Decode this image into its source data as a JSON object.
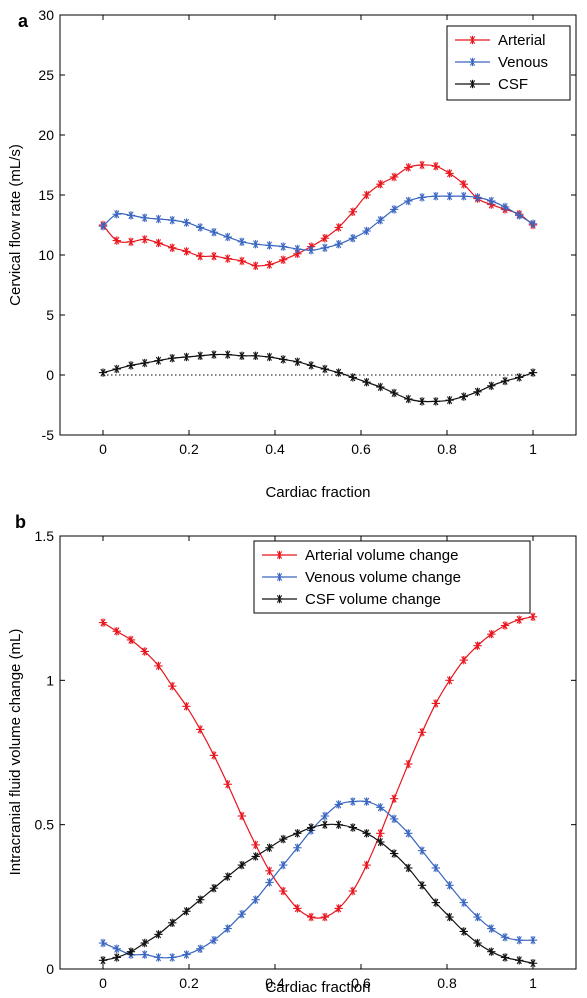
{
  "chart_data": [
    {
      "type": "line",
      "panel": "a",
      "xlabel": "Cardiac fraction",
      "ylabel": "Cervical flow rate (mL/s)",
      "xlim": [
        -0.1,
        1.1
      ],
      "ylim": [
        -5,
        30
      ],
      "xticks": [
        0,
        0.2,
        0.4,
        0.6,
        0.8,
        1
      ],
      "xtick_labels": [
        "0",
        "0.2",
        "0.4",
        "0.6",
        "0.8",
        "1"
      ],
      "yticks": [
        -5,
        0,
        5,
        10,
        15,
        20,
        25,
        30
      ],
      "ytick_labels": [
        "-5",
        "0",
        "5",
        "10",
        "15",
        "20",
        "25",
        "30"
      ],
      "legend_position": "top-right",
      "zero_line": true,
      "series": [
        {
          "name": "Arterial",
          "color": "#e8141c",
          "x": [
            0,
            0.032,
            0.065,
            0.097,
            0.129,
            0.161,
            0.194,
            0.226,
            0.258,
            0.29,
            0.323,
            0.355,
            0.387,
            0.419,
            0.452,
            0.484,
            0.516,
            0.548,
            0.581,
            0.613,
            0.645,
            0.677,
            0.71,
            0.742,
            0.774,
            0.806,
            0.839,
            0.871,
            0.903,
            0.935,
            0.968,
            1
          ],
          "y": [
            12.5,
            11.2,
            11.1,
            11.3,
            11.0,
            10.6,
            10.3,
            9.9,
            9.9,
            9.7,
            9.5,
            9.1,
            9.2,
            9.6,
            10.1,
            10.7,
            11.4,
            12.3,
            13.6,
            15.0,
            15.9,
            16.5,
            17.3,
            17.5,
            17.4,
            16.8,
            15.9,
            14.7,
            14.2,
            13.8,
            13.4,
            12.5
          ]
        },
        {
          "name": "Venous",
          "color": "#3a66c0",
          "x": [
            0,
            0.032,
            0.065,
            0.097,
            0.129,
            0.161,
            0.194,
            0.226,
            0.258,
            0.29,
            0.323,
            0.355,
            0.387,
            0.419,
            0.452,
            0.484,
            0.516,
            0.548,
            0.581,
            0.613,
            0.645,
            0.677,
            0.71,
            0.742,
            0.774,
            0.806,
            0.839,
            0.871,
            0.903,
            0.935,
            0.968,
            1
          ],
          "y": [
            12.4,
            13.4,
            13.3,
            13.1,
            13.0,
            12.9,
            12.7,
            12.3,
            11.9,
            11.5,
            11.1,
            10.9,
            10.8,
            10.7,
            10.5,
            10.4,
            10.6,
            10.9,
            11.4,
            12.0,
            12.9,
            13.8,
            14.5,
            14.8,
            14.9,
            14.9,
            14.9,
            14.8,
            14.5,
            14.0,
            13.3,
            12.6
          ]
        },
        {
          "name": "CSF",
          "color": "#111111",
          "x": [
            0,
            0.032,
            0.065,
            0.097,
            0.129,
            0.161,
            0.194,
            0.226,
            0.258,
            0.29,
            0.323,
            0.355,
            0.387,
            0.419,
            0.452,
            0.484,
            0.516,
            0.548,
            0.581,
            0.613,
            0.645,
            0.677,
            0.71,
            0.742,
            0.774,
            0.806,
            0.839,
            0.871,
            0.903,
            0.935,
            0.968,
            1
          ],
          "y": [
            0.2,
            0.5,
            0.8,
            1.0,
            1.2,
            1.4,
            1.5,
            1.6,
            1.7,
            1.7,
            1.6,
            1.6,
            1.5,
            1.3,
            1.1,
            0.8,
            0.5,
            0.2,
            -0.2,
            -0.6,
            -1.0,
            -1.5,
            -2.0,
            -2.2,
            -2.2,
            -2.1,
            -1.8,
            -1.4,
            -0.9,
            -0.5,
            -0.2,
            0.2
          ]
        }
      ]
    },
    {
      "type": "line",
      "panel": "b",
      "xlabel": "Cardiac fraction",
      "ylabel": "Intracranial fluid volume change (mL)",
      "xlim": [
        -0.1,
        1.1
      ],
      "ylim": [
        0,
        1.5
      ],
      "xticks": [
        0,
        0.2,
        0.4,
        0.6,
        0.8,
        1
      ],
      "xtick_labels": [
        "0",
        "0.2",
        "0.4",
        "0.6",
        "0.8",
        "1"
      ],
      "yticks": [
        0,
        0.5,
        1,
        1.5
      ],
      "ytick_labels": [
        "0",
        "0.5",
        "1",
        "1.5"
      ],
      "legend_position": "top-right",
      "zero_line": false,
      "series": [
        {
          "name": "Arterial volume change",
          "color": "#e8141c",
          "x": [
            0,
            0.032,
            0.065,
            0.097,
            0.129,
            0.161,
            0.194,
            0.226,
            0.258,
            0.29,
            0.323,
            0.355,
            0.387,
            0.419,
            0.452,
            0.484,
            0.516,
            0.548,
            0.581,
            0.613,
            0.645,
            0.677,
            0.71,
            0.742,
            0.774,
            0.806,
            0.839,
            0.871,
            0.903,
            0.935,
            0.968,
            1
          ],
          "y": [
            1.2,
            1.17,
            1.14,
            1.1,
            1.05,
            0.98,
            0.91,
            0.83,
            0.74,
            0.64,
            0.53,
            0.43,
            0.34,
            0.27,
            0.21,
            0.18,
            0.18,
            0.21,
            0.27,
            0.36,
            0.47,
            0.59,
            0.71,
            0.82,
            0.92,
            1.0,
            1.07,
            1.12,
            1.16,
            1.19,
            1.21,
            1.22
          ]
        },
        {
          "name": "Venous volume change",
          "color": "#3a66c0",
          "x": [
            0,
            0.032,
            0.065,
            0.097,
            0.129,
            0.161,
            0.194,
            0.226,
            0.258,
            0.29,
            0.323,
            0.355,
            0.387,
            0.419,
            0.452,
            0.484,
            0.516,
            0.548,
            0.581,
            0.613,
            0.645,
            0.677,
            0.71,
            0.742,
            0.774,
            0.806,
            0.839,
            0.871,
            0.903,
            0.935,
            0.968,
            1
          ],
          "y": [
            0.09,
            0.07,
            0.05,
            0.05,
            0.04,
            0.04,
            0.05,
            0.07,
            0.1,
            0.14,
            0.19,
            0.24,
            0.3,
            0.36,
            0.42,
            0.48,
            0.53,
            0.57,
            0.58,
            0.58,
            0.56,
            0.52,
            0.47,
            0.41,
            0.35,
            0.29,
            0.23,
            0.18,
            0.14,
            0.11,
            0.1,
            0.1
          ]
        },
        {
          "name": "CSF volume change",
          "color": "#111111",
          "x": [
            0,
            0.032,
            0.065,
            0.097,
            0.129,
            0.161,
            0.194,
            0.226,
            0.258,
            0.29,
            0.323,
            0.355,
            0.387,
            0.419,
            0.452,
            0.484,
            0.516,
            0.548,
            0.581,
            0.613,
            0.645,
            0.677,
            0.71,
            0.742,
            0.774,
            0.806,
            0.839,
            0.871,
            0.903,
            0.935,
            0.968,
            1
          ],
          "y": [
            0.03,
            0.04,
            0.06,
            0.09,
            0.12,
            0.16,
            0.2,
            0.24,
            0.28,
            0.32,
            0.36,
            0.39,
            0.42,
            0.45,
            0.47,
            0.49,
            0.5,
            0.5,
            0.49,
            0.47,
            0.44,
            0.4,
            0.35,
            0.29,
            0.23,
            0.18,
            0.13,
            0.09,
            0.06,
            0.04,
            0.03,
            0.02
          ]
        }
      ]
    }
  ]
}
